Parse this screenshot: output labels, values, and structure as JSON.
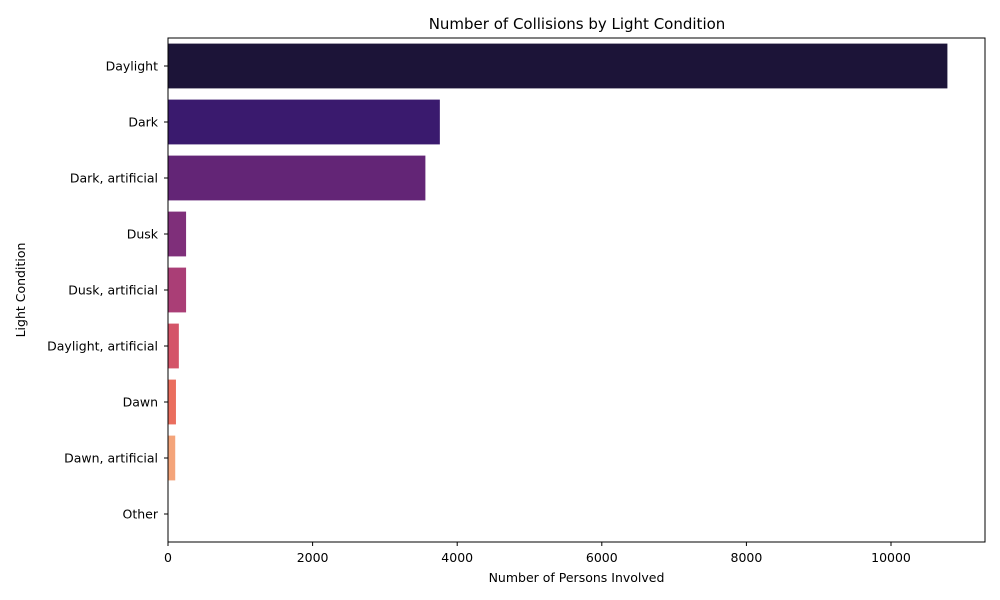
{
  "chart_data": {
    "type": "bar",
    "orientation": "horizontal",
    "title": "Number of Collisions by Light Condition",
    "xlabel": "Number of Persons Involved",
    "ylabel": "Light Condition",
    "categories": [
      "Daylight",
      "Dark",
      "Dark, artificial",
      "Dusk",
      "Dusk, artificial",
      "Daylight, artificial",
      "Dawn",
      "Dawn, artificial",
      "Other"
    ],
    "values": [
      10780,
      3760,
      3560,
      250,
      250,
      150,
      110,
      100,
      5
    ],
    "colors": [
      "#1c1438",
      "#3a1a6e",
      "#632576",
      "#7f2f7a",
      "#aa3e76",
      "#d45468",
      "#ea6e5e",
      "#f4a47a",
      "#f7d9b8"
    ],
    "xlim": [
      0,
      11300
    ],
    "xticks": [
      0,
      2000,
      4000,
      6000,
      8000,
      10000
    ],
    "grid": false,
    "legend": "none"
  }
}
